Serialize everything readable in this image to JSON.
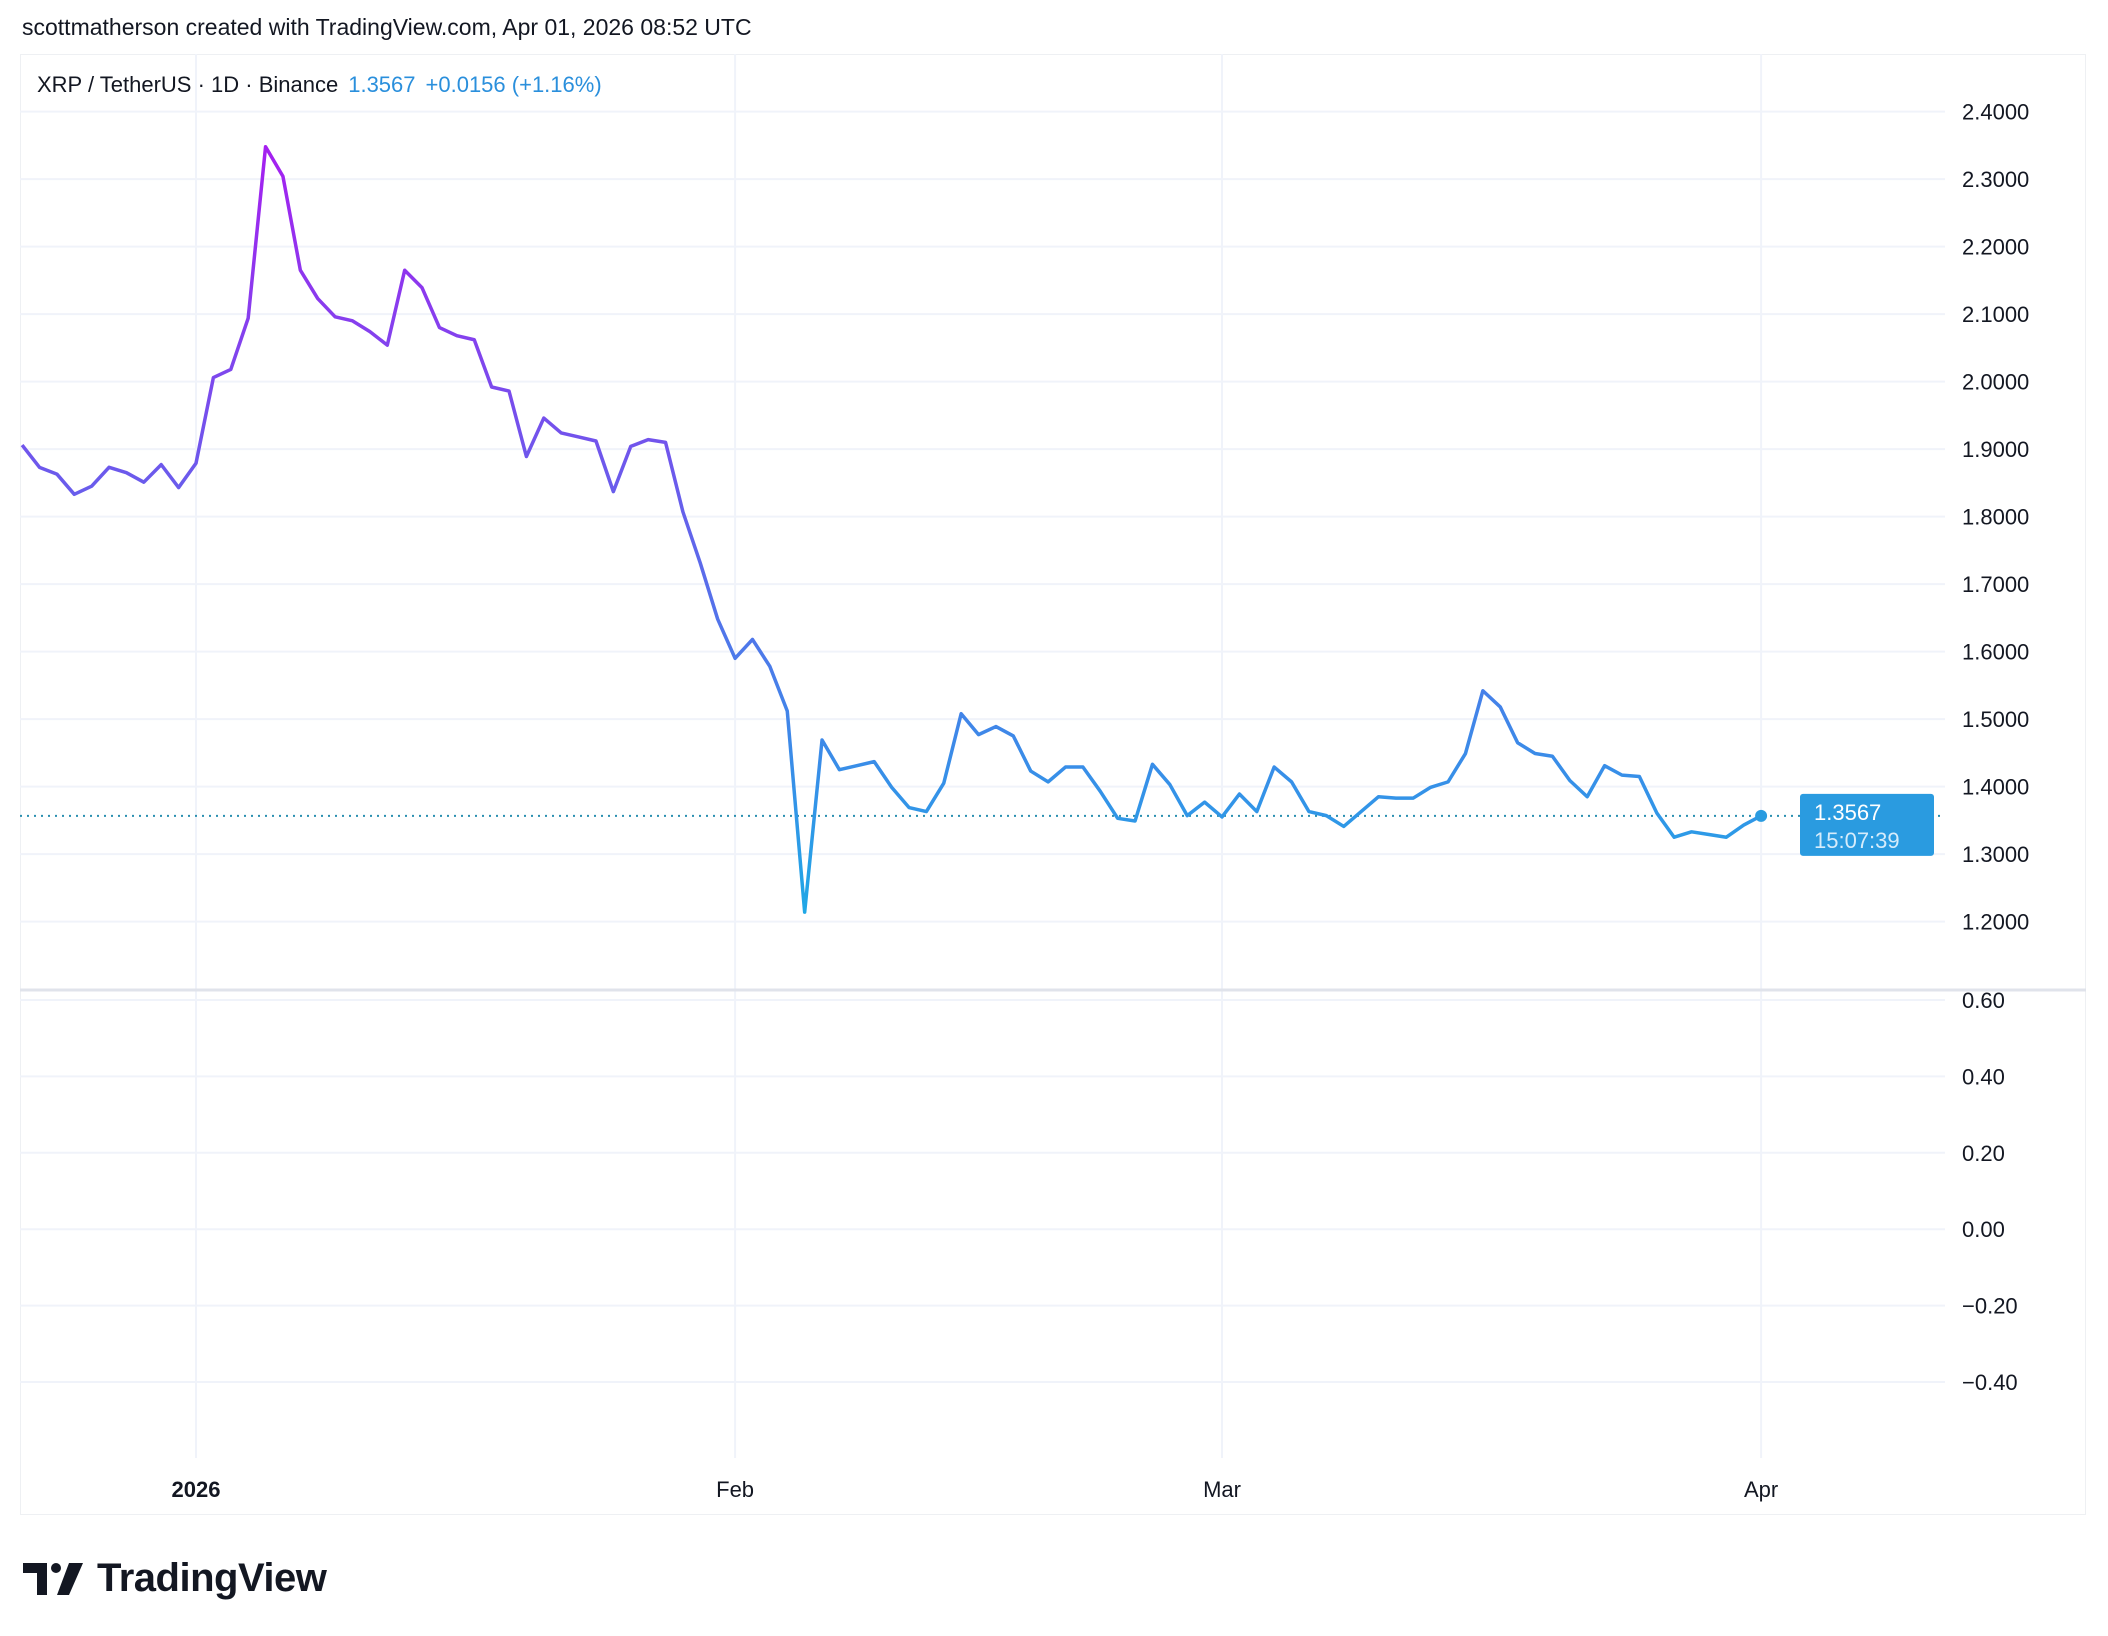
{
  "header": {
    "credit": "scottmatherson created with TradingView.com, Apr 01, 2026 08:52 UTC"
  },
  "legend": {
    "symbol": "XRP / TetherUS · 1D · Binance",
    "last": "1.3567",
    "change": "+0.0156 (+1.16%)"
  },
  "price_label": {
    "price": "1.3567",
    "countdown": "15:07:39",
    "color": "#2a9be0"
  },
  "logo": {
    "text": "TradingView"
  },
  "chart_data": [
    {
      "type": "line",
      "title": "XRP / TetherUS · 1D · Binance",
      "x_start": "2025-12-22",
      "x_end": "2026-04-01",
      "x_ticks": [
        {
          "date": "2026-01-01",
          "label": "2026"
        },
        {
          "date": "2026-02-01",
          "label": "Feb"
        },
        {
          "date": "2026-03-01",
          "label": "Mar"
        },
        {
          "date": "2026-04-01",
          "label": "Apr"
        }
      ],
      "ylim": [
        1.15,
        2.46
      ],
      "y_ticks": [
        "2.4000",
        "2.3000",
        "2.2000",
        "2.1000",
        "2.0000",
        "1.9000",
        "1.8000",
        "1.7000",
        "1.6000",
        "1.5000",
        "1.4000",
        "1.3000",
        "1.2000"
      ],
      "grid": true,
      "line_gradient": {
        "top": "#a61ef0",
        "bottom": "#1fa8e6"
      },
      "last_value_line": 1.3567,
      "series": [
        {
          "values": [
            1.906,
            1.873,
            1.863,
            1.833,
            1.845,
            1.873,
            1.865,
            1.851,
            1.877,
            1.843,
            1.879,
            2.006,
            2.018,
            2.094,
            2.348,
            2.304,
            2.165,
            2.123,
            2.096,
            2.09,
            2.074,
            2.054,
            2.165,
            2.139,
            2.08,
            2.068,
            2.062,
            1.992,
            1.986,
            1.889,
            1.946,
            1.924,
            1.918,
            1.912,
            1.837,
            1.904,
            1.914,
            1.91,
            1.807,
            1.731,
            1.648,
            1.59,
            1.618,
            1.578,
            1.512,
            1.214,
            1.469,
            1.425,
            1.431,
            1.437,
            1.399,
            1.369,
            1.363,
            1.405,
            1.508,
            1.477,
            1.489,
            1.475,
            1.423,
            1.407,
            1.429,
            1.429,
            1.393,
            1.353,
            1.349,
            1.433,
            1.403,
            1.357,
            1.377,
            1.355,
            1.389,
            1.363,
            1.429,
            1.407,
            1.363,
            1.357,
            1.341,
            1.363,
            1.385,
            1.383,
            1.383,
            1.399,
            1.407,
            1.449,
            1.542,
            1.518,
            1.465,
            1.449,
            1.445,
            1.409,
            1.385,
            1.431,
            1.417,
            1.415,
            1.361,
            1.325,
            1.333,
            1.329,
            1.325,
            1.343,
            1.3567
          ]
        }
      ]
    },
    {
      "type": "line",
      "ylim": [
        -0.6,
        0.62
      ],
      "y_ticks": [
        "0.60",
        "0.40",
        "0.20",
        "0.00",
        "−0.20",
        "−0.40"
      ],
      "grid": true,
      "series": []
    }
  ]
}
